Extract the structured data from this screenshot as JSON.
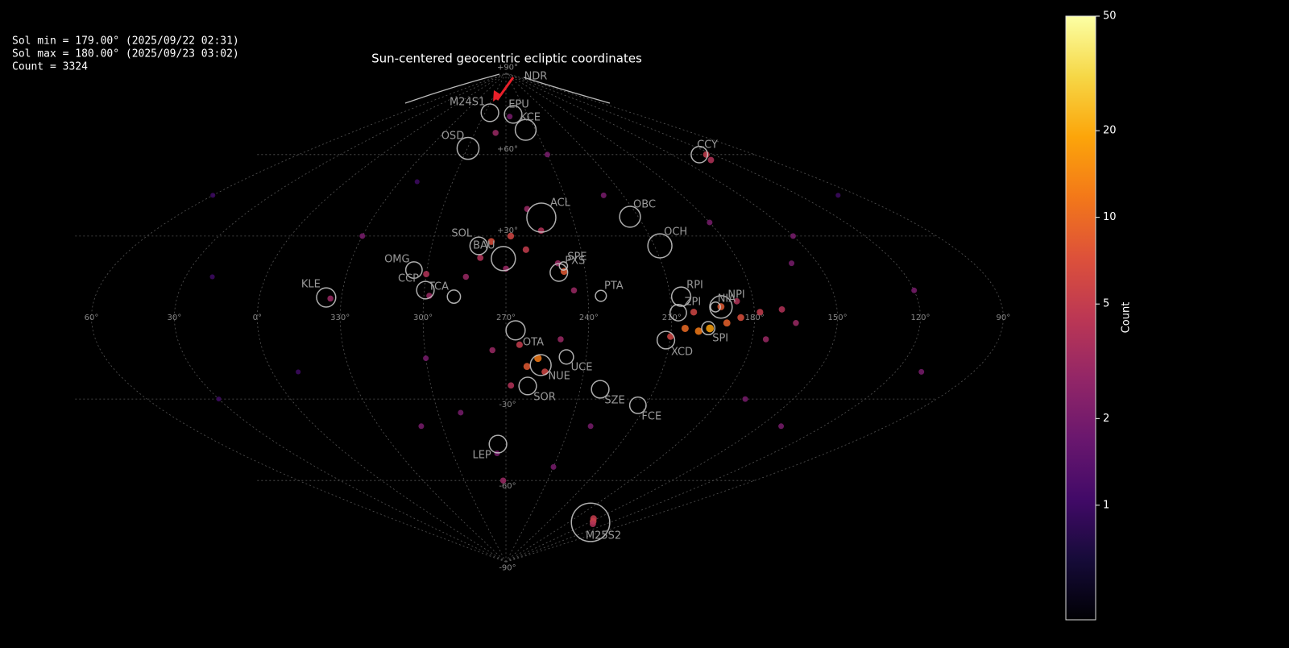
{
  "chart_data": {
    "type": "sky-map",
    "title": "Sun-centered geocentric ecliptic coordinates",
    "info": [
      "Sol min = 179.00° (2025/09/22 02:31)",
      "Sol max = 180.00° (2025/09/23 03:02)",
      "Count = 3324"
    ],
    "center_lon": 270,
    "xticks": [
      {
        "value": 60,
        "label": "60°"
      },
      {
        "value": 30,
        "label": "30°"
      },
      {
        "value": 0,
        "label": "0°"
      },
      {
        "value": 330,
        "label": "330°"
      },
      {
        "value": 300,
        "label": "300°"
      },
      {
        "value": 270,
        "label": "270°"
      },
      {
        "value": 240,
        "label": "240°"
      },
      {
        "value": 210,
        "label": "210°"
      },
      {
        "value": 180,
        "label": "180°"
      },
      {
        "value": 150,
        "label": "150°"
      },
      {
        "value": 120,
        "label": "120°"
      },
      {
        "value": 90,
        "label": "90°"
      }
    ],
    "yticks": [
      {
        "value": 90,
        "label": "+90°"
      },
      {
        "value": 60,
        "label": "+60°"
      },
      {
        "value": 30,
        "label": "+30°"
      },
      {
        "value": -30,
        "label": "-30°"
      },
      {
        "value": -60,
        "label": "-60°"
      },
      {
        "value": -90,
        "label": "-90°"
      }
    ],
    "ylim": [
      -90,
      90
    ],
    "grid": true,
    "showers": {
      "name": [
        "NDR",
        "M24S1",
        "EPU",
        "KCE",
        "OSD",
        "CCY",
        "ACL",
        "OBC",
        "OCH",
        "SOL",
        "BAU",
        "SPE",
        "PXS",
        "OMG",
        "CCP",
        "TCA",
        "KLE",
        "PTA",
        "RPI",
        "ZPI",
        "NIA",
        "NPI",
        "SPI",
        "XCD",
        "OTA",
        "UCE",
        "NUE",
        "SOR",
        "SZE",
        "FCE",
        "LEP",
        "M25S2"
      ],
      "lon": [
        200,
        293,
        260,
        250,
        299.5,
        130,
        254,
        213.7,
        207.8,
        281,
        271,
        248,
        250,
        304.9,
        299.6,
        289,
        335.6,
        235.3,
        206,
        207.6,
        192,
        194,
        196.6,
        211.5,
        266.5,
        247.4,
        256.8,
        261.3,
        231.9,
        213.5,
        274.2,
        148.5
      ],
      "lat": [
        87,
        75.4,
        74.8,
        69.1,
        62.3,
        60,
        36.8,
        37.1,
        26.4,
        26.4,
        21.7,
        19,
        16.6,
        17.5,
        10.1,
        7.7,
        7.4,
        8,
        7.7,
        1.8,
        3.9,
        3.9,
        -3.9,
        -8.3,
        -4.7,
        -14.5,
        -17.5,
        -25.2,
        -26.4,
        -32.3,
        -46.6,
        -75.4
      ],
      "r": [
        null,
        3.2,
        3.2,
        3.8,
        4,
        3,
        5.3,
        3.8,
        4.4,
        3.2,
        4.4,
        1.5,
        3.2,
        3,
        3.2,
        2.4,
        3.5,
        2,
        3.5,
        3,
        4.1,
        1.8,
        2.4,
        3.2,
        3.5,
        2.6,
        3.8,
        3.2,
        3.2,
        3,
        3.2,
        7
      ]
    },
    "points": {
      "lon": [
        196,
        200,
        205,
        190,
        185,
        178,
        170,
        192,
        186,
        210,
        202,
        165,
        175,
        258,
        262,
        255,
        265,
        268,
        250,
        275,
        276,
        268,
        262,
        280,
        255,
        270,
        285,
        260,
        250,
        245,
        300,
        298,
        334,
        248,
        148,
        155,
        140,
        125,
        130,
        272,
        275,
        280,
        265,
        240,
        150,
        160,
        120,
        110,
        140,
        330,
        20,
        350,
        30,
        60,
        100,
        310,
        320,
        230,
        220,
        170,
        180,
        300,
        290,
        240
      ],
      "lat": [
        -4,
        -5,
        -4,
        -2,
        0,
        2,
        3,
        4,
        6,
        -7,
        2,
        -2,
        -8,
        -15,
        -18,
        -20,
        -10,
        -25,
        -8,
        -12,
        28,
        30,
        25,
        22,
        32,
        18,
        15,
        40,
        20,
        10,
        16,
        8,
        7,
        17,
        -75,
        -74,
        -76,
        60,
        58,
        -60,
        -50,
        68,
        74,
        60,
        30,
        20,
        10,
        -20,
        -40,
        30,
        15,
        -20,
        -30,
        45,
        45,
        -40,
        50,
        -40,
        45,
        -30,
        35,
        -15,
        -35,
        -55
      ],
      "count": [
        18,
        12,
        10,
        9,
        7,
        5,
        4,
        8,
        4,
        6,
        6,
        3,
        3,
        12,
        8,
        6,
        5,
        4,
        3,
        3,
        7,
        6,
        5,
        4,
        4,
        3,
        3,
        3,
        3,
        3,
        4,
        3,
        3,
        8,
        6,
        5,
        4,
        5,
        4,
        3,
        2,
        3,
        2,
        2,
        2,
        2,
        2,
        2,
        2,
        2,
        1,
        1,
        1,
        1,
        1,
        2,
        1,
        2,
        2,
        2,
        2,
        2,
        2,
        2
      ]
    },
    "colorbar": {
      "label": "Count",
      "log": true,
      "clim": [
        0.4,
        50
      ],
      "ticks": [
        1,
        2,
        5,
        10,
        20,
        50
      ]
    }
  }
}
